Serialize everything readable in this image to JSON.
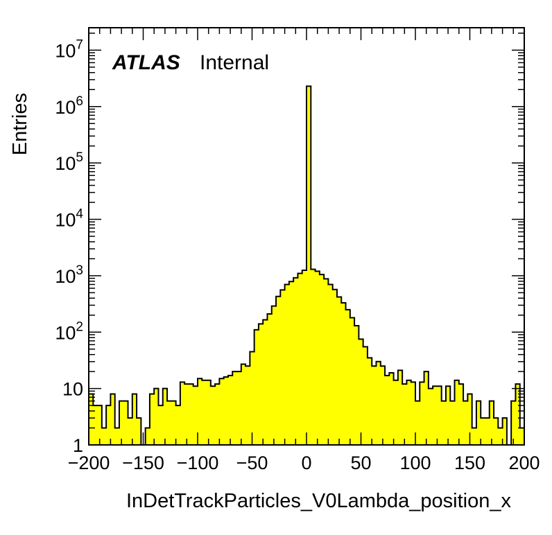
{
  "chart_data": {
    "type": "bar",
    "title": "",
    "xlabel": "InDetTrackParticles_V0Lambda_position_x",
    "ylabel": "Entries",
    "xlim": [
      -200,
      200
    ],
    "ylim": [
      1,
      25000000
    ],
    "log_y": true,
    "grid": false,
    "legend": "none",
    "fill_color": "#ffff00",
    "line_color": "#000000",
    "bin_width": 4,
    "x_ticks": [
      -200,
      -150,
      -100,
      -50,
      0,
      50,
      100,
      150,
      200
    ],
    "x_tick_labels": [
      "−200",
      "−150",
      "−100",
      "−50",
      "0",
      "50",
      "100",
      "150",
      "200"
    ],
    "y_ticks": [
      1,
      10,
      100,
      1000,
      10000,
      100000,
      1000000,
      10000000
    ],
    "y_tick_labels": [
      {
        "base": "1",
        "exp": ""
      },
      {
        "base": "10",
        "exp": ""
      },
      {
        "base": "10",
        "exp": "2"
      },
      {
        "base": "10",
        "exp": "3"
      },
      {
        "base": "10",
        "exp": "4"
      },
      {
        "base": "10",
        "exp": "5"
      },
      {
        "base": "10",
        "exp": "6"
      },
      {
        "base": "10",
        "exp": "7"
      }
    ],
    "annotations": [
      {
        "text": "ATLAS",
        "style": "bold-italic"
      },
      {
        "text": "Internal",
        "style": "normal"
      }
    ],
    "bins": [
      {
        "x0": -200,
        "value": 8
      },
      {
        "x0": -196,
        "value": 5
      },
      {
        "x0": -192,
        "value": 5
      },
      {
        "x0": -188,
        "value": 2
      },
      {
        "x0": -184,
        "value": 5
      },
      {
        "x0": -180,
        "value": 8
      },
      {
        "x0": -176,
        "value": 2
      },
      {
        "x0": -172,
        "value": 6
      },
      {
        "x0": -168,
        "value": 6
      },
      {
        "x0": -164,
        "value": 3
      },
      {
        "x0": -160,
        "value": 8
      },
      {
        "x0": -156,
        "value": 3
      },
      {
        "x0": -152,
        "value": 1
      },
      {
        "x0": -148,
        "value": 2
      },
      {
        "x0": -144,
        "value": 8
      },
      {
        "x0": -140,
        "value": 10
      },
      {
        "x0": -136,
        "value": 5
      },
      {
        "x0": -132,
        "value": 10
      },
      {
        "x0": -128,
        "value": 6
      },
      {
        "x0": -124,
        "value": 6
      },
      {
        "x0": -120,
        "value": 5
      },
      {
        "x0": -116,
        "value": 13
      },
      {
        "x0": -112,
        "value": 12
      },
      {
        "x0": -108,
        "value": 12
      },
      {
        "x0": -104,
        "value": 11
      },
      {
        "x0": -100,
        "value": 15
      },
      {
        "x0": -96,
        "value": 14
      },
      {
        "x0": -92,
        "value": 14
      },
      {
        "x0": -88,
        "value": 11
      },
      {
        "x0": -84,
        "value": 12
      },
      {
        "x0": -80,
        "value": 15
      },
      {
        "x0": -76,
        "value": 16
      },
      {
        "x0": -72,
        "value": 17
      },
      {
        "x0": -68,
        "value": 20
      },
      {
        "x0": -64,
        "value": 20
      },
      {
        "x0": -60,
        "value": 27
      },
      {
        "x0": -56,
        "value": 25
      },
      {
        "x0": -52,
        "value": 45
      },
      {
        "x0": -48,
        "value": 110
      },
      {
        "x0": -44,
        "value": 140
      },
      {
        "x0": -40,
        "value": 165
      },
      {
        "x0": -36,
        "value": 210
      },
      {
        "x0": -32,
        "value": 290
      },
      {
        "x0": -28,
        "value": 430
      },
      {
        "x0": -24,
        "value": 560
      },
      {
        "x0": -20,
        "value": 700
      },
      {
        "x0": -16,
        "value": 790
      },
      {
        "x0": -12,
        "value": 920
      },
      {
        "x0": -8,
        "value": 1100
      },
      {
        "x0": -4,
        "value": 1250
      },
      {
        "x0": 0,
        "value": 2300000
      },
      {
        "x0": 4,
        "value": 1300
      },
      {
        "x0": 8,
        "value": 1200
      },
      {
        "x0": 12,
        "value": 1050
      },
      {
        "x0": 16,
        "value": 880
      },
      {
        "x0": 20,
        "value": 700
      },
      {
        "x0": 24,
        "value": 570
      },
      {
        "x0": 28,
        "value": 420
      },
      {
        "x0": 32,
        "value": 330
      },
      {
        "x0": 36,
        "value": 250
      },
      {
        "x0": 40,
        "value": 180
      },
      {
        "x0": 44,
        "value": 130
      },
      {
        "x0": 48,
        "value": 75
      },
      {
        "x0": 52,
        "value": 55
      },
      {
        "x0": 56,
        "value": 35
      },
      {
        "x0": 60,
        "value": 25
      },
      {
        "x0": 64,
        "value": 30
      },
      {
        "x0": 68,
        "value": 25
      },
      {
        "x0": 72,
        "value": 17
      },
      {
        "x0": 76,
        "value": 19
      },
      {
        "x0": 80,
        "value": 14
      },
      {
        "x0": 84,
        "value": 21
      },
      {
        "x0": 88,
        "value": 12
      },
      {
        "x0": 92,
        "value": 14
      },
      {
        "x0": 96,
        "value": 13
      },
      {
        "x0": 100,
        "value": 6
      },
      {
        "x0": 104,
        "value": 13
      },
      {
        "x0": 108,
        "value": 20
      },
      {
        "x0": 112,
        "value": 10
      },
      {
        "x0": 116,
        "value": 11
      },
      {
        "x0": 120,
        "value": 11
      },
      {
        "x0": 124,
        "value": 6
      },
      {
        "x0": 128,
        "value": 11
      },
      {
        "x0": 132,
        "value": 6
      },
      {
        "x0": 136,
        "value": 14
      },
      {
        "x0": 140,
        "value": 12
      },
      {
        "x0": 144,
        "value": 6
      },
      {
        "x0": 148,
        "value": 8
      },
      {
        "x0": 152,
        "value": 2
      },
      {
        "x0": 156,
        "value": 6
      },
      {
        "x0": 160,
        "value": 3
      },
      {
        "x0": 164,
        "value": 3
      },
      {
        "x0": 168,
        "value": 6
      },
      {
        "x0": 172,
        "value": 3
      },
      {
        "x0": 176,
        "value": 2
      },
      {
        "x0": 180,
        "value": 3
      },
      {
        "x0": 184,
        "value": 1
      },
      {
        "x0": 188,
        "value": 6
      },
      {
        "x0": 192,
        "value": 12
      },
      {
        "x0": 196,
        "value": 2
      }
    ]
  }
}
